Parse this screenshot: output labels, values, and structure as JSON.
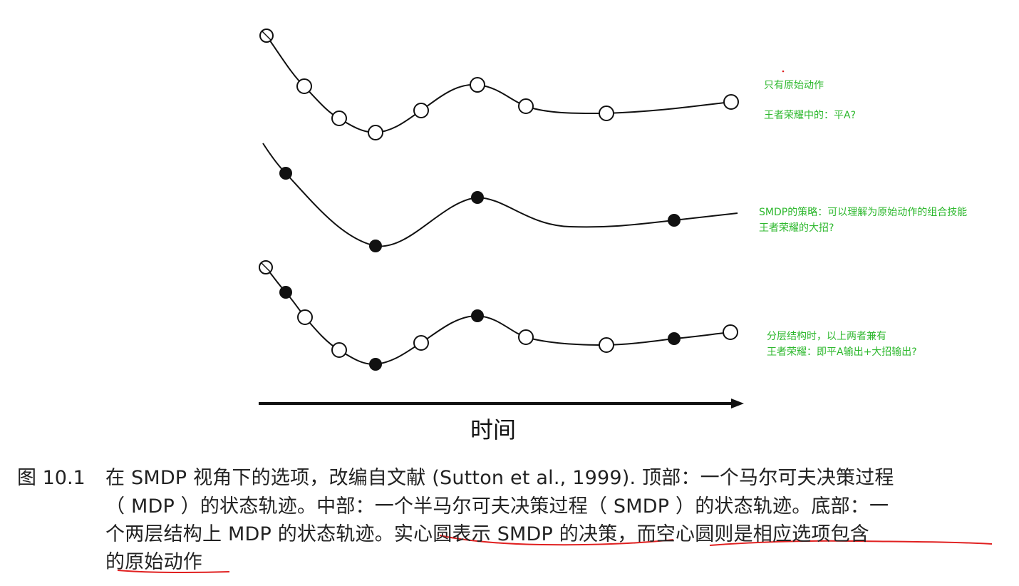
{
  "diagram": {
    "axis_label": "时间",
    "rows": [
      {
        "name": "top",
        "markers": [
          "open",
          "open",
          "open",
          "open",
          "open",
          "open",
          "open",
          "open",
          "open"
        ]
      },
      {
        "name": "middle",
        "markers": [
          "filled",
          "filled",
          "filled",
          "filled"
        ]
      },
      {
        "name": "bottom",
        "markers": [
          "open",
          "filled",
          "open",
          "open",
          "filled",
          "open",
          "filled",
          "open",
          "open",
          "filled",
          "open"
        ]
      }
    ]
  },
  "notes": {
    "top": {
      "line1": "只有原始动作",
      "line2": "王者荣耀中的：平A?"
    },
    "middle": {
      "line1": "SMDP的策略：可以理解为原始动作的组合技能",
      "line2": "王者荣耀的大招?"
    },
    "bottom": {
      "line1": "分层结构时，以上两者兼有",
      "line2": "王者荣耀：即平A输出+大招输出?"
    }
  },
  "caption": {
    "number": "图 10.1",
    "line1": "在 SMDP 视角下的选项，改编自文献 (Sutton et al., 1999). 顶部：一个马尔可夫决策过程",
    "line2": "（ MDP ）的状态轨迹。中部：一个半马尔可夫决策过程（ SMDP ）的状态轨迹。底部：一",
    "line3": "个两层结构上 MDP 的状态轨迹。实心圆表示 SMDP 的决策，而空心圆则是相应选项包含",
    "line4": "的原始动作"
  },
  "colors": {
    "annotation_green": "#2eb82e",
    "underline_red": "#e02020",
    "ink": "#111111"
  }
}
